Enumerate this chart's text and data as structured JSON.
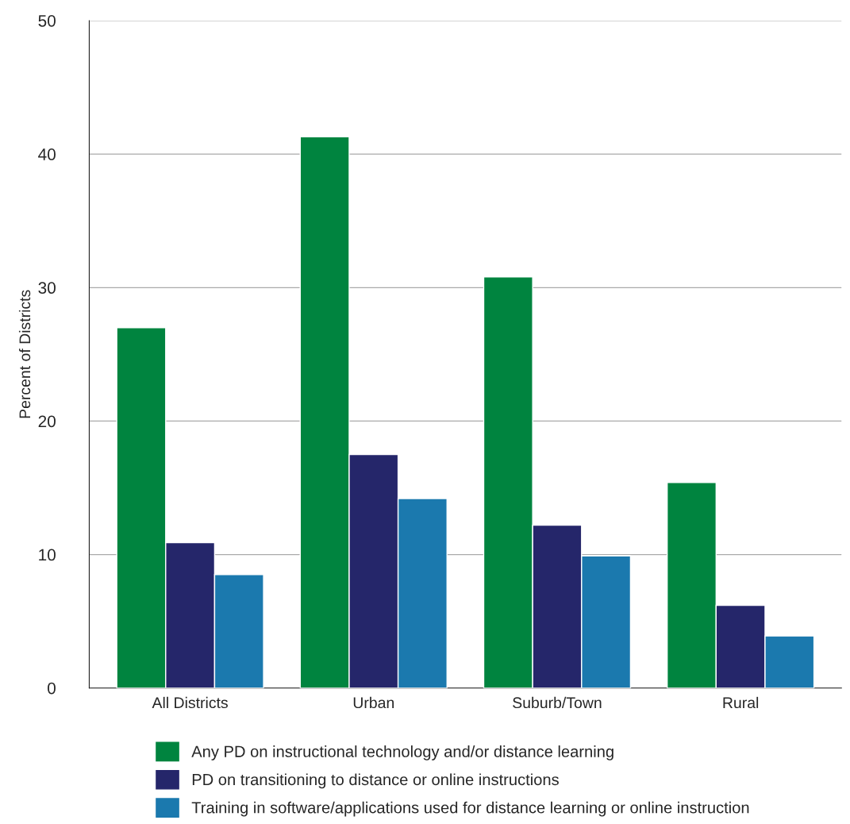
{
  "chart_data": {
    "type": "bar",
    "ylabel": "Percent of Districts",
    "categories": [
      "All Districts",
      "Urban",
      "Suburb/Town",
      "Rural"
    ],
    "series": [
      {
        "name": "Any PD on instructional technology and/or distance learning",
        "color": "#00843f",
        "values": [
          27.0,
          41.3,
          30.8,
          15.4
        ]
      },
      {
        "name": "PD on transitioning to distance or online instructions",
        "color": "#25266a",
        "values": [
          10.9,
          17.5,
          12.2,
          6.2
        ]
      },
      {
        "name": "Training in software/applications used for distance learning or online instruction",
        "color": "#1b79ae",
        "values": [
          8.5,
          14.2,
          9.9,
          3.9
        ]
      }
    ],
    "ylim": [
      0,
      50
    ],
    "yticks": [
      0,
      10,
      20,
      30,
      40,
      50
    ],
    "grid": "y",
    "legend": "bottom"
  }
}
